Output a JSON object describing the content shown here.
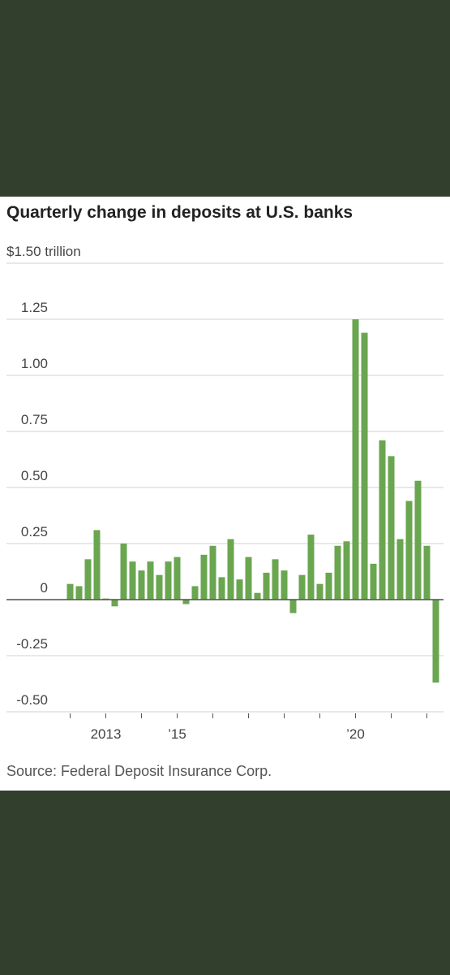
{
  "chart_data": {
    "type": "bar",
    "title": "Quarterly change in deposits at U.S. banks",
    "source": "Source: Federal Deposit Insurance Corp.",
    "categories": [
      null,
      null,
      null,
      null,
      "2013",
      null,
      null,
      null,
      null,
      null,
      null,
      null,
      "’15",
      null,
      null,
      null,
      null,
      null,
      null,
      null,
      null,
      null,
      null,
      null,
      null,
      null,
      null,
      null,
      null,
      null,
      null,
      null,
      "’20",
      null,
      null,
      null,
      null,
      null,
      null,
      null,
      null,
      null
    ],
    "values": [
      0.07,
      0.06,
      0.18,
      0.31,
      0.005,
      -0.03,
      0.25,
      0.17,
      0.13,
      0.17,
      0.11,
      0.17,
      0.19,
      -0.02,
      0.06,
      0.2,
      0.24,
      0.1,
      0.27,
      0.09,
      0.19,
      0.03,
      0.12,
      0.18,
      0.13,
      -0.06,
      0.11,
      0.29,
      0.07,
      0.12,
      0.24,
      0.26,
      1.25,
      1.19,
      0.16,
      0.71,
      0.64,
      0.27,
      0.44,
      0.53,
      0.24,
      -0.37
    ],
    "color": "#6aa650",
    "ylim": [
      -0.5,
      1.5
    ],
    "yticks": [
      {
        "value": -0.5,
        "label": "-0.50"
      },
      -0.25,
      0,
      0.25,
      {
        "value": 0.5,
        "label": "0.50"
      },
      0.75,
      {
        "value": 1,
        "label": "1.00"
      },
      1.25,
      {
        "value": 1.5,
        "label": "$1.50 trillion"
      }
    ],
    "grid": true
  }
}
